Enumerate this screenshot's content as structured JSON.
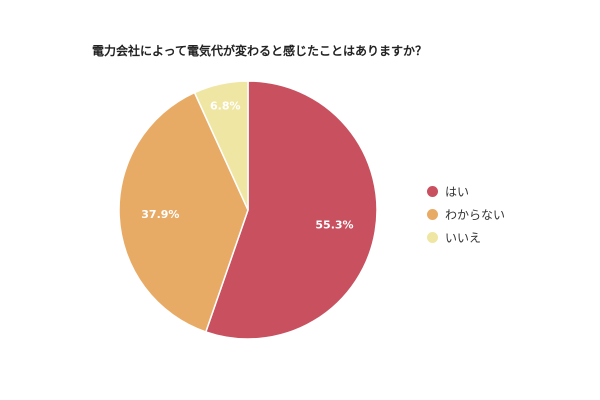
{
  "chart_data": {
    "type": "pie",
    "title": "電力会社によって電気代が変わると感じたことはありますか？",
    "categories": [
      "はい",
      "わからない",
      "いいえ"
    ],
    "values": [
      55.3,
      37.9,
      6.8
    ],
    "data_labels": [
      "55.3%",
      "37.9%",
      "6.8%"
    ],
    "colors": [
      "#c8505f",
      "#e8ab66",
      "#f0e6a3"
    ],
    "legend_position": "right"
  }
}
